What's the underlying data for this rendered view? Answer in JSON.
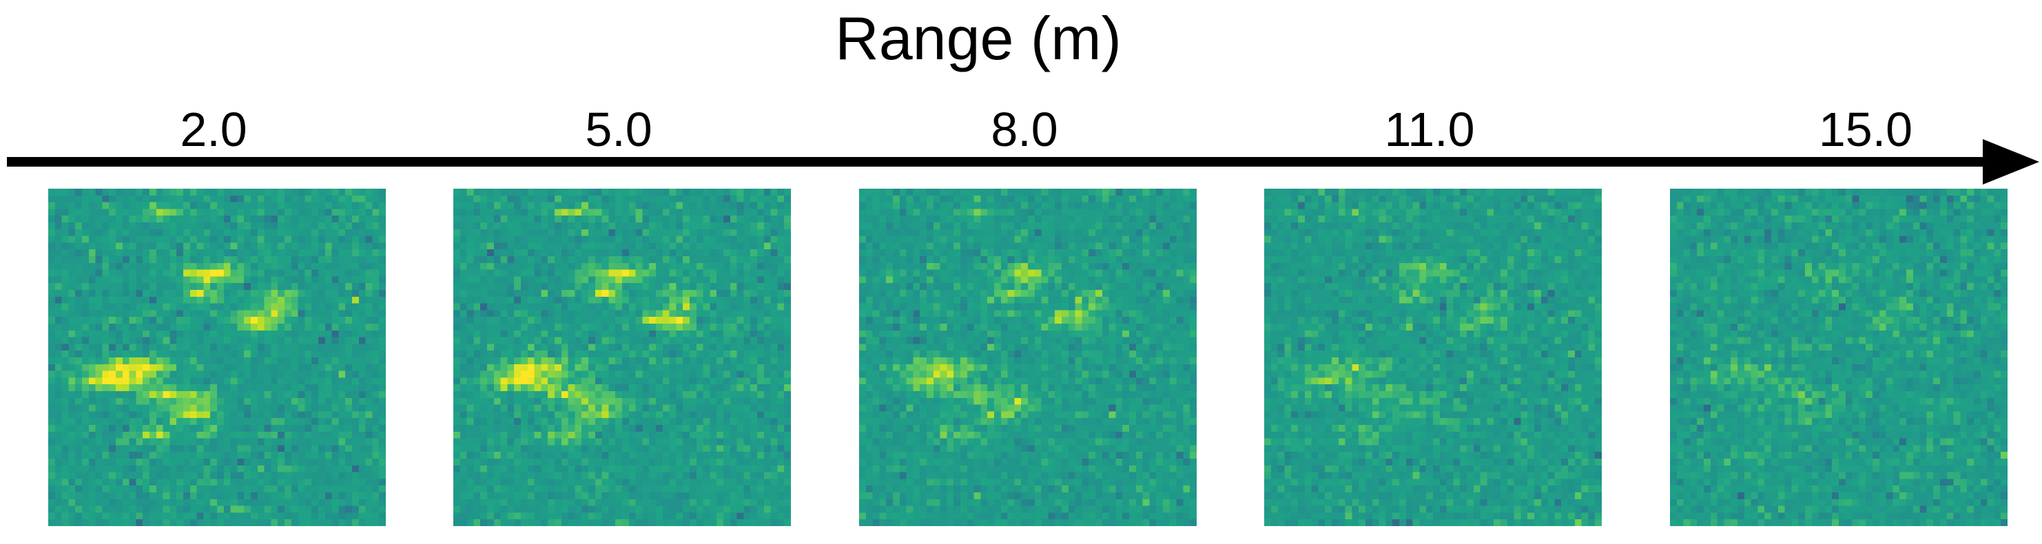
{
  "title": "Range (m)",
  "ranges": [
    "2.0",
    "5.0",
    "8.0",
    "11.0",
    "15.0"
  ],
  "panels": [
    {
      "range_label": "2.0",
      "signal_strength": 1.0
    },
    {
      "range_label": "5.0",
      "signal_strength": 0.88
    },
    {
      "range_label": "8.0",
      "signal_strength": 0.66
    },
    {
      "range_label": "11.0",
      "signal_strength": 0.46
    },
    {
      "range_label": "15.0",
      "signal_strength": 0.3
    }
  ],
  "colors": {
    "arrow": "#000000",
    "background": "#ffffff",
    "colormap": "viridis"
  }
}
